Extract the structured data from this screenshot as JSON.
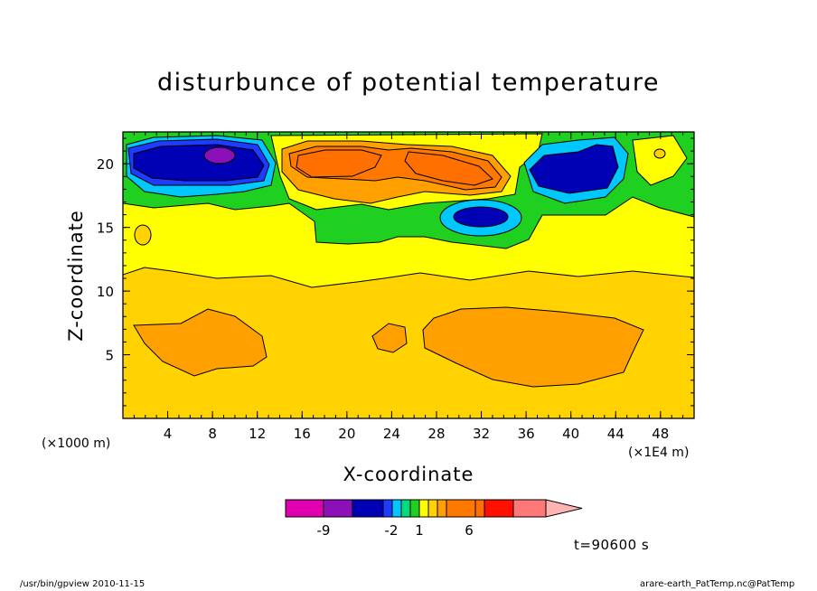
{
  "chart_data": {
    "type": "contour",
    "title": "disturbunce of potential temperature",
    "xlabel": "X-coordinate",
    "ylabel": "Z-coordinate",
    "x_scale_left": "(×1000 m)",
    "x_scale_right": "(×1E4 m)",
    "x_ticks": [
      "4",
      "8",
      "12",
      "16",
      "20",
      "24",
      "28",
      "32",
      "36",
      "40",
      "44",
      "48"
    ],
    "y_ticks": [
      "5",
      "10",
      "15",
      "20"
    ],
    "xlim": [
      0,
      51
    ],
    "ylim": [
      0,
      22.5
    ],
    "colorbar": {
      "tick_labels": [
        "-9",
        "-2",
        "1",
        "6"
      ],
      "colors": [
        "#e000b0",
        "#8c10b8",
        "#0000b4",
        "#1e3cff",
        "#00c8ff",
        "#00dc80",
        "#20d020",
        "#ffff00",
        "#ffd200",
        "#ffa000",
        "#ff7800",
        "#ff7000",
        "#ff1000",
        "#ff7878",
        "#ffb4b4"
      ]
    },
    "levels_description": "negative anomalies near top at x≈8, 32, 41; positive anomaly cells near x≈20-30 at z≈20; broad positive region below z≈11",
    "time": "t=90600 s"
  },
  "footer": {
    "left": "/usr/bin/gpview   2010-11-15",
    "right": "arare-earth_PatTemp.nc@PatTemp"
  }
}
